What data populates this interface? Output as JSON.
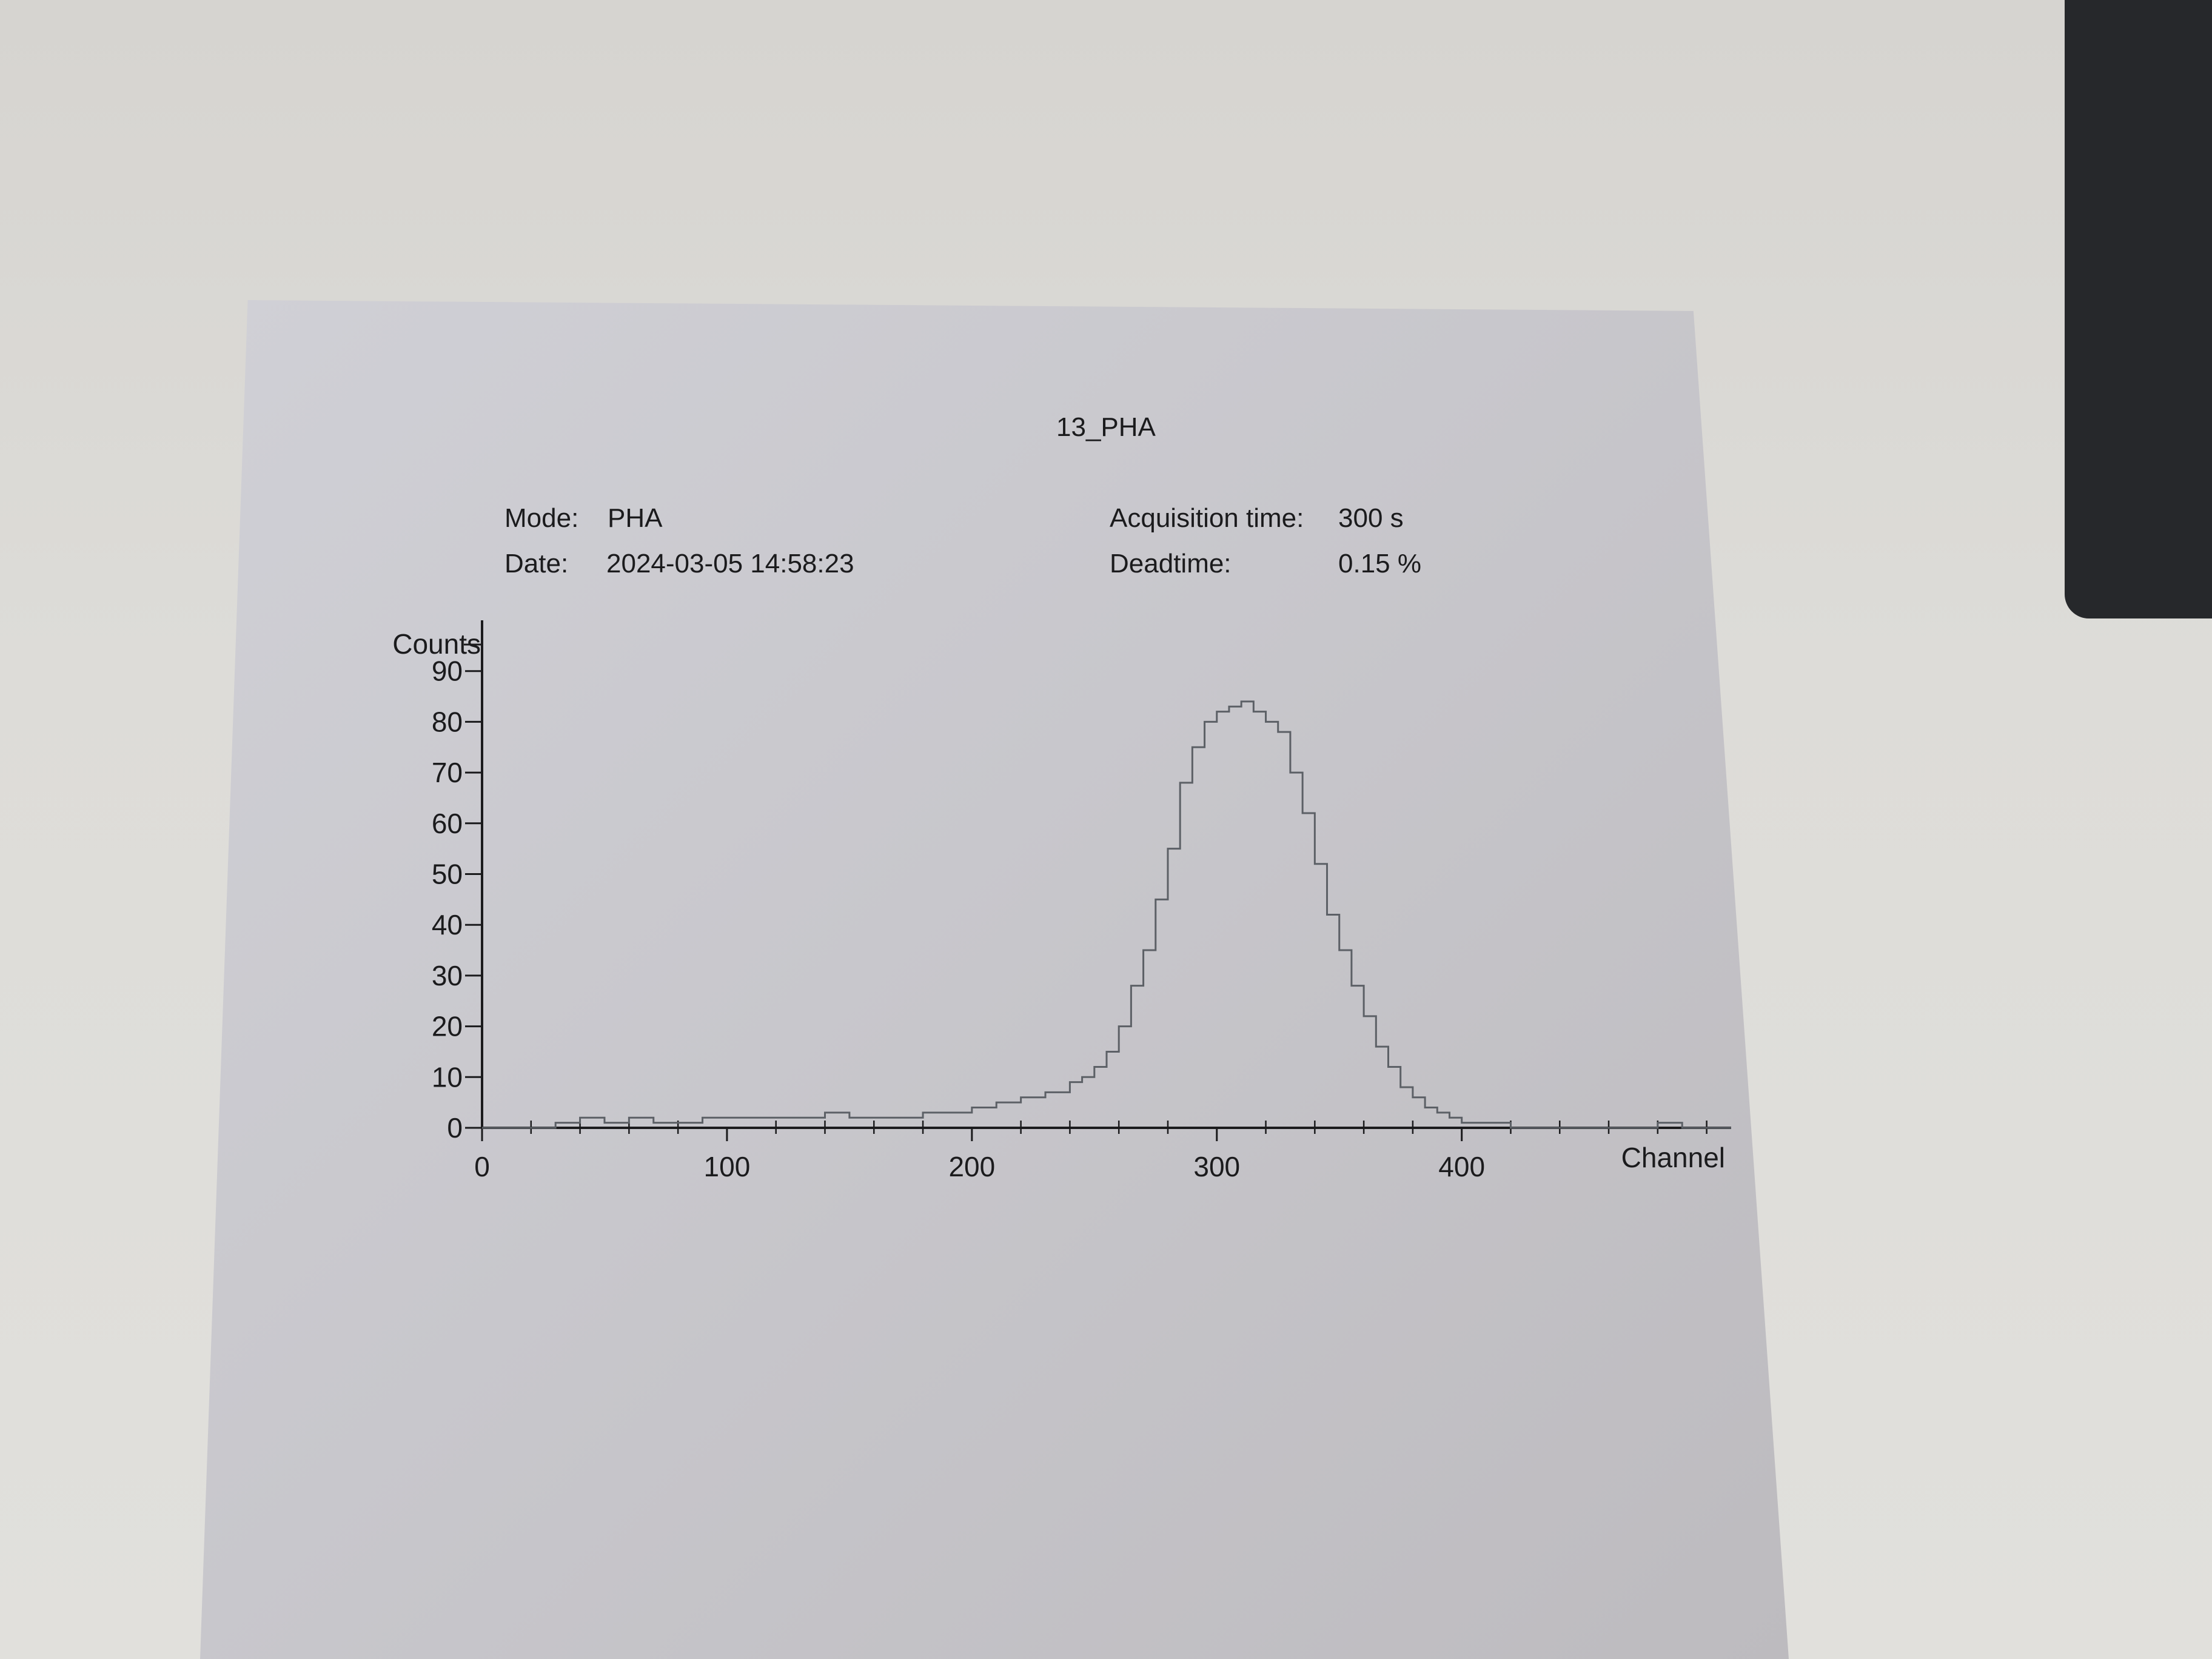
{
  "report": {
    "title": "13_PHA",
    "mode_label": "Mode:",
    "mode_value": "PHA",
    "date_label": "Date:",
    "date_value": "2024-03-05 14:58:23",
    "acq_label": "Acquisition time:",
    "acq_value": "300 s",
    "dead_label": "Deadtime:",
    "dead_value": "0.15 %"
  },
  "chart_data": {
    "type": "line",
    "title": "13_PHA",
    "xlabel": "Channel",
    "ylabel": "Counts",
    "xlim": [
      0,
      510
    ],
    "ylim": [
      0,
      100
    ],
    "x_ticks": [
      0,
      100,
      200,
      300,
      400
    ],
    "y_ticks": [
      0,
      10,
      20,
      30,
      40,
      50,
      60,
      70,
      80,
      90
    ],
    "grid": false,
    "style": "step histogram",
    "series": [
      {
        "x": [
          0,
          10,
          20,
          30,
          40,
          50,
          60,
          70,
          80,
          90,
          100,
          110,
          120,
          130,
          140,
          150,
          160,
          170,
          180,
          190,
          200,
          210,
          220,
          230,
          240,
          245,
          250,
          255,
          260,
          265,
          270,
          275,
          280,
          285,
          290,
          295,
          300,
          305,
          310,
          315,
          320,
          325,
          330,
          335,
          340,
          345,
          350,
          355,
          360,
          365,
          370,
          375,
          380,
          385,
          390,
          395,
          400,
          410,
          420,
          430,
          440,
          450,
          460,
          470,
          480,
          490,
          500
        ],
        "values": [
          0,
          0,
          0,
          1,
          2,
          1,
          2,
          1,
          1,
          2,
          2,
          2,
          2,
          2,
          3,
          2,
          2,
          2,
          3,
          3,
          4,
          5,
          6,
          7,
          9,
          10,
          12,
          15,
          20,
          28,
          35,
          45,
          55,
          68,
          75,
          80,
          82,
          83,
          84,
          82,
          80,
          78,
          70,
          62,
          52,
          42,
          35,
          28,
          22,
          16,
          12,
          8,
          6,
          4,
          3,
          2,
          1,
          1,
          0,
          0,
          0,
          0,
          0,
          0,
          1,
          0,
          0
        ]
      }
    ],
    "colors": {
      "line": "#5c6066"
    }
  }
}
